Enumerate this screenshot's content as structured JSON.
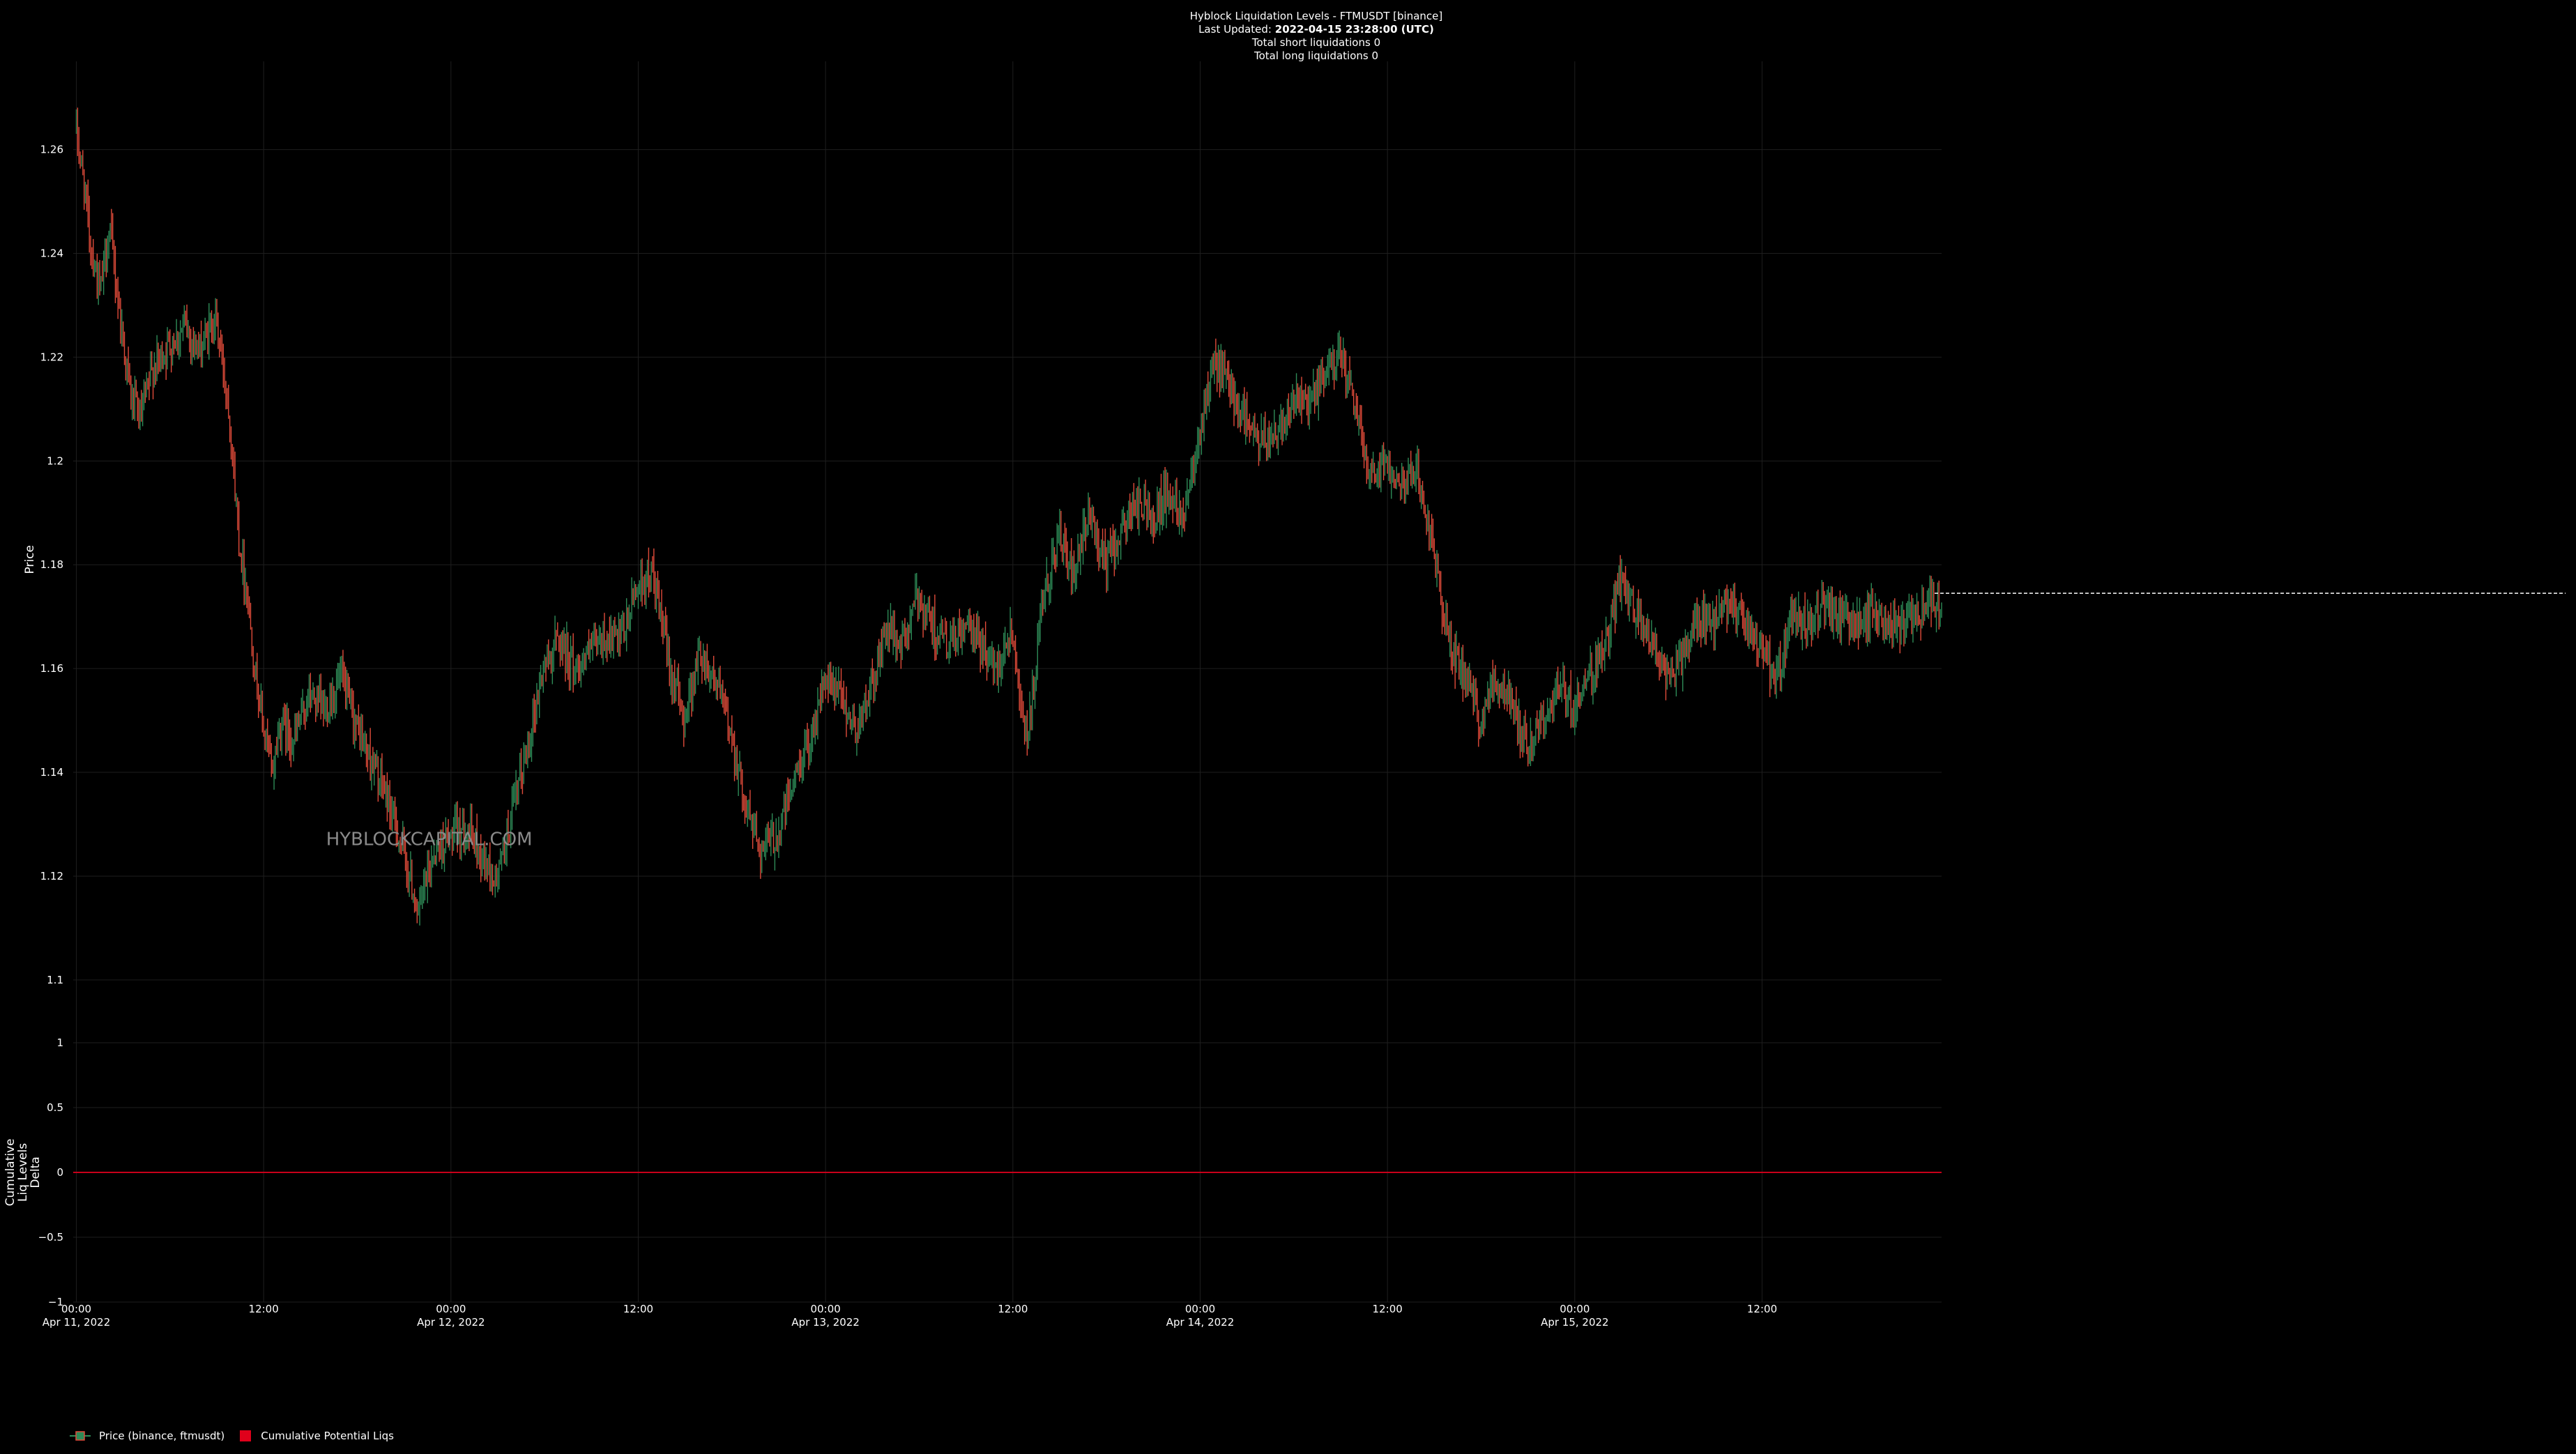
{
  "header": {
    "title": "Hyblock Liquidation Levels - FTMUSDT [binance]",
    "last_updated_label": "Last Updated: ",
    "last_updated_value": "2022-04-15 23:28:00 (UTC)",
    "short_liqs": "Total short liquidations 0",
    "long_liqs": "Total long liquidations 0"
  },
  "watermark": "HYBLOCKCAPITAL.COM",
  "colors": {
    "up": "#2e8b57",
    "down": "#e04b3a",
    "grid": "#1e1e1e",
    "zero_line": "#c8001a",
    "last_price": "#ffffff"
  },
  "legend": [
    {
      "label": "Price (binance, ftmusdt)"
    },
    {
      "label": "Cumulative Potential Liqs"
    }
  ],
  "chart_data": [
    {
      "type": "candlestick",
      "ylabel": "Price",
      "ylim": [
        1.093,
        1.277
      ],
      "yticks": [
        1.1,
        1.12,
        1.14,
        1.16,
        1.18,
        1.2,
        1.22,
        1.24,
        1.26
      ],
      "ytick_labels": [
        "1.1",
        "1.12",
        "1.14",
        "1.16",
        "1.18",
        "1.2",
        "1.22",
        "1.24",
        "1.26"
      ],
      "x_range_hours": [
        -0.2,
        119.5
      ],
      "xticks": [
        {
          "h": 0,
          "label": "00:00",
          "date": "Apr 11, 2022"
        },
        {
          "h": 12,
          "label": "12:00",
          "date": ""
        },
        {
          "h": 24,
          "label": "00:00",
          "date": "Apr 12, 2022"
        },
        {
          "h": 36,
          "label": "12:00",
          "date": ""
        },
        {
          "h": 48,
          "label": "00:00",
          "date": "Apr 13, 2022"
        },
        {
          "h": 60,
          "label": "12:00",
          "date": ""
        },
        {
          "h": 72,
          "label": "00:00",
          "date": "Apr 14, 2022"
        },
        {
          "h": 84,
          "label": "12:00",
          "date": ""
        },
        {
          "h": 96,
          "label": "00:00",
          "date": "Apr 15, 2022"
        },
        {
          "h": 108,
          "label": "12:00",
          "date": ""
        }
      ],
      "price_path": [
        [
          0,
          1.265
        ],
        [
          0.5,
          1.255
        ],
        [
          1,
          1.242
        ],
        [
          1.6,
          1.232
        ],
        [
          2.2,
          1.245
        ],
        [
          3,
          1.225
        ],
        [
          3.6,
          1.212
        ],
        [
          4.2,
          1.208
        ],
        [
          5,
          1.218
        ],
        [
          6,
          1.222
        ],
        [
          7,
          1.226
        ],
        [
          8,
          1.221
        ],
        [
          9,
          1.228
        ],
        [
          9.8,
          1.212
        ],
        [
          10.5,
          1.185
        ],
        [
          11,
          1.175
        ],
        [
          11.6,
          1.158
        ],
        [
          12,
          1.15
        ],
        [
          12.6,
          1.14
        ],
        [
          13.2,
          1.15
        ],
        [
          14,
          1.146
        ],
        [
          15,
          1.155
        ],
        [
          16,
          1.152
        ],
        [
          17,
          1.158
        ],
        [
          18,
          1.149
        ],
        [
          19,
          1.142
        ],
        [
          20,
          1.135
        ],
        [
          21,
          1.125
        ],
        [
          22,
          1.113
        ],
        [
          23,
          1.125
        ],
        [
          24,
          1.127
        ],
        [
          25,
          1.13
        ],
        [
          26,
          1.124
        ],
        [
          27,
          1.119
        ],
        [
          28,
          1.132
        ],
        [
          29,
          1.145
        ],
        [
          30,
          1.16
        ],
        [
          31,
          1.166
        ],
        [
          32,
          1.16
        ],
        [
          33,
          1.163
        ],
        [
          34,
          1.166
        ],
        [
          35,
          1.165
        ],
        [
          36,
          1.176
        ],
        [
          37,
          1.178
        ],
        [
          38,
          1.162
        ],
        [
          39,
          1.15
        ],
        [
          40,
          1.163
        ],
        [
          41,
          1.158
        ],
        [
          42,
          1.148
        ],
        [
          43,
          1.133
        ],
        [
          44,
          1.125
        ],
        [
          45,
          1.128
        ],
        [
          46,
          1.138
        ],
        [
          47,
          1.146
        ],
        [
          48,
          1.157
        ],
        [
          49,
          1.155
        ],
        [
          50,
          1.148
        ],
        [
          51,
          1.156
        ],
        [
          52,
          1.168
        ],
        [
          53,
          1.164
        ],
        [
          54,
          1.174
        ],
        [
          55,
          1.168
        ],
        [
          56,
          1.164
        ],
        [
          57,
          1.168
        ],
        [
          58,
          1.165
        ],
        [
          59,
          1.16
        ],
        [
          60,
          1.168
        ],
        [
          61,
          1.145
        ],
        [
          62,
          1.172
        ],
        [
          63,
          1.186
        ],
        [
          64,
          1.177
        ],
        [
          65,
          1.19
        ],
        [
          66,
          1.18
        ],
        [
          67,
          1.186
        ],
        [
          68,
          1.192
        ],
        [
          69,
          1.189
        ],
        [
          70,
          1.194
        ],
        [
          71,
          1.19
        ],
        [
          72,
          1.206
        ],
        [
          73,
          1.219
        ],
        [
          74,
          1.214
        ],
        [
          75,
          1.208
        ],
        [
          76,
          1.203
        ],
        [
          77,
          1.206
        ],
        [
          78,
          1.212
        ],
        [
          79,
          1.21
        ],
        [
          80,
          1.216
        ],
        [
          81,
          1.221
        ],
        [
          82,
          1.21
        ],
        [
          83,
          1.198
        ],
        [
          84,
          1.2
        ],
        [
          85,
          1.196
        ],
        [
          86,
          1.198
        ],
        [
          87,
          1.183
        ],
        [
          88,
          1.165
        ],
        [
          89,
          1.158
        ],
        [
          90,
          1.15
        ],
        [
          91,
          1.158
        ],
        [
          92,
          1.154
        ],
        [
          93,
          1.145
        ],
        [
          94,
          1.15
        ],
        [
          95,
          1.156
        ],
        [
          96,
          1.153
        ],
        [
          97,
          1.158
        ],
        [
          98,
          1.164
        ],
        [
          99,
          1.177
        ],
        [
          100,
          1.17
        ],
        [
          101,
          1.166
        ],
        [
          102,
          1.158
        ],
        [
          103,
          1.162
        ],
        [
          104,
          1.17
        ],
        [
          105,
          1.168
        ],
        [
          106,
          1.173
        ],
        [
          107,
          1.168
        ],
        [
          108,
          1.164
        ],
        [
          109,
          1.157
        ],
        [
          110,
          1.17
        ],
        [
          111,
          1.168
        ],
        [
          112,
          1.172
        ],
        [
          113,
          1.17
        ],
        [
          114,
          1.168
        ],
        [
          115,
          1.171
        ],
        [
          116,
          1.169
        ],
        [
          117,
          1.167
        ],
        [
          118,
          1.171
        ],
        [
          119.5,
          1.173
        ]
      ],
      "last_price": 1.1745,
      "watermark_h": 16,
      "watermark_y": 1.126
    },
    {
      "type": "line",
      "ylabel": "Cumulative\nLiq Levels\nDelta",
      "ylim": [
        -1,
        1
      ],
      "yticks": [
        -1,
        -0.5,
        0,
        0.5,
        1
      ],
      "ytick_labels": [
        "−1",
        "−0.5",
        "0",
        "0.5",
        "1"
      ],
      "values": [
        0,
        0
      ]
    }
  ]
}
